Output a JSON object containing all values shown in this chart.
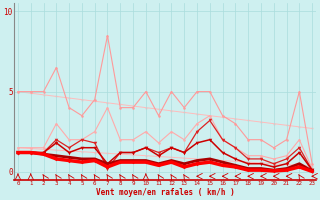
{
  "title": "",
  "xlabel": "Vent moyen/en rafales ( km/h )",
  "bg_color": "#cef0f0",
  "grid_color": "#aadddd",
  "x": [
    0,
    1,
    2,
    3,
    4,
    5,
    6,
    7,
    8,
    9,
    10,
    11,
    12,
    13,
    14,
    15,
    16,
    17,
    18,
    19,
    20,
    21,
    22,
    23
  ],
  "series": [
    {
      "y": [
        5,
        5,
        5,
        6.5,
        4,
        3.5,
        4.5,
        8.5,
        4,
        4,
        5,
        3.5,
        5,
        4,
        5,
        5,
        3.5,
        3,
        2,
        2,
        1.5,
        2,
        5,
        0.5
      ],
      "color": "#ff9999",
      "lw": 0.8,
      "marker": "o",
      "ms": 1.8,
      "alpha": 1.0,
      "zorder": 2
    },
    {
      "y": [
        1.5,
        1.5,
        1.5,
        3.0,
        2.0,
        2.0,
        2.5,
        4.0,
        2.0,
        2.0,
        2.5,
        1.8,
        2.5,
        2.0,
        3.0,
        3.5,
        2.0,
        1.5,
        1.0,
        1.0,
        0.8,
        1.0,
        2.0,
        0.2
      ],
      "color": "#ffaaaa",
      "lw": 0.8,
      "marker": "o",
      "ms": 1.8,
      "alpha": 1.0,
      "zorder": 2
    },
    {
      "y": [
        5.0,
        4.9,
        4.8,
        4.7,
        4.6,
        4.5,
        4.4,
        4.3,
        4.2,
        4.1,
        4.0,
        3.9,
        3.8,
        3.7,
        3.6,
        3.5,
        3.4,
        3.3,
        3.2,
        3.1,
        3.0,
        2.9,
        2.8,
        2.7
      ],
      "color": "#ffbbbb",
      "lw": 0.7,
      "marker": "o",
      "ms": 1.5,
      "alpha": 1.0,
      "zorder": 1
    },
    {
      "y": [
        1.5,
        1.45,
        1.4,
        1.35,
        1.3,
        1.25,
        1.2,
        1.15,
        1.1,
        1.05,
        1.0,
        0.95,
        0.9,
        0.85,
        0.8,
        0.75,
        0.7,
        0.65,
        0.6,
        0.55,
        0.5,
        0.45,
        0.4,
        0.35
      ],
      "color": "#ffbbbb",
      "lw": 0.7,
      "marker": "o",
      "ms": 1.5,
      "alpha": 1.0,
      "zorder": 1
    },
    {
      "y": [
        1.2,
        1.2,
        1.2,
        2.0,
        1.5,
        2.0,
        1.8,
        0.2,
        1.2,
        1.2,
        1.5,
        1.2,
        1.5,
        1.2,
        2.5,
        3.2,
        2.0,
        1.5,
        0.8,
        0.8,
        0.5,
        0.8,
        1.5,
        0.1
      ],
      "color": "#dd2222",
      "lw": 0.9,
      "marker": "v",
      "ms": 2.5,
      "alpha": 1.0,
      "zorder": 3
    },
    {
      "y": [
        1.2,
        1.2,
        1.2,
        1.8,
        1.2,
        1.5,
        1.5,
        0.5,
        1.2,
        1.2,
        1.5,
        1.0,
        1.5,
        1.2,
        1.8,
        2.0,
        1.2,
        0.8,
        0.5,
        0.5,
        0.3,
        0.5,
        1.2,
        0.1
      ],
      "color": "#cc0000",
      "lw": 1.1,
      "marker": "v",
      "ms": 2.5,
      "alpha": 1.0,
      "zorder": 3
    },
    {
      "y": [
        1.2,
        1.2,
        1.1,
        1.0,
        0.9,
        0.8,
        0.8,
        0.5,
        0.7,
        0.7,
        0.7,
        0.5,
        0.7,
        0.5,
        0.7,
        0.8,
        0.6,
        0.4,
        0.2,
        0.2,
        0.1,
        0.2,
        0.5,
        0.05
      ],
      "color": "#aa0000",
      "lw": 2.0,
      "marker": "D",
      "ms": 1.8,
      "alpha": 1.0,
      "zorder": 4
    },
    {
      "y": [
        1.2,
        1.2,
        1.1,
        0.8,
        0.7,
        0.6,
        0.7,
        0.3,
        0.6,
        0.6,
        0.6,
        0.4,
        0.6,
        0.3,
        0.5,
        0.6,
        0.4,
        0.3,
        0.1,
        0.1,
        0.05,
        0.1,
        0.3,
        0.02
      ],
      "color": "#ff0000",
      "lw": 2.5,
      "marker": "D",
      "ms": 1.8,
      "alpha": 1.0,
      "zorder": 5
    }
  ],
  "ylim": [
    -0.5,
    10.5
  ],
  "xlim": [
    -0.3,
    23.3
  ],
  "yticks": [
    0,
    5,
    10
  ],
  "xticks": [
    0,
    1,
    2,
    3,
    4,
    5,
    6,
    7,
    8,
    9,
    10,
    11,
    12,
    13,
    14,
    15,
    16,
    17,
    18,
    19,
    20,
    21,
    22,
    23
  ]
}
